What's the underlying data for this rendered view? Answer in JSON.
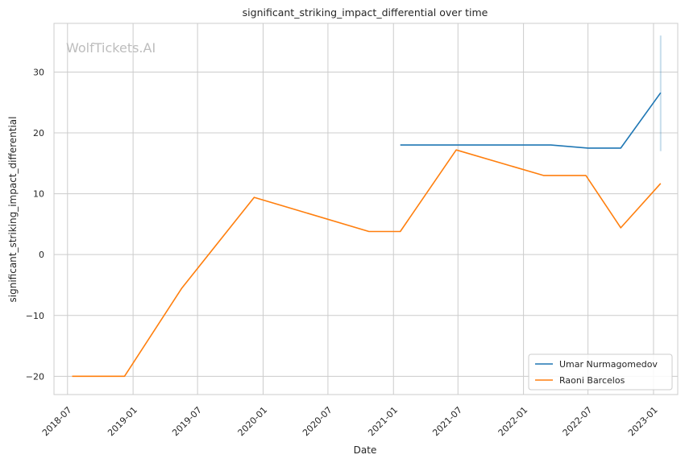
{
  "chart_data": {
    "type": "line",
    "title": "significant_striking_impact_differential over time",
    "xlabel": "Date",
    "ylabel": "significant_striking_impact_differential",
    "watermark": "WolfTickets.AI",
    "xlim": [
      "2018-05-24",
      "2023-03-10"
    ],
    "ylim": [
      -23,
      38
    ],
    "x_ticks": [
      "2018-07",
      "2019-01",
      "2019-07",
      "2020-01",
      "2020-07",
      "2021-01",
      "2021-07",
      "2022-01",
      "2022-07",
      "2023-01"
    ],
    "y_ticks": [
      -20,
      -10,
      0,
      10,
      20,
      30
    ],
    "grid": true,
    "legend_position": "lower-right",
    "series": [
      {
        "name": "Umar Nurmagomedov",
        "color": "#1f77b4",
        "x": [
          "2021-01-20",
          "2021-06-26",
          "2022-03-19",
          "2022-07-01",
          "2022-10-01",
          "2023-01-21"
        ],
        "y": [
          18.0,
          18.0,
          18.0,
          17.5,
          17.5,
          26.6
        ]
      },
      {
        "name": "Raoni Barcelos",
        "color": "#ff7f0e",
        "x": [
          "2018-07-14",
          "2018-12-08",
          "2019-05-18",
          "2019-12-07",
          "2020-10-24",
          "2021-01-20",
          "2021-06-26",
          "2022-02-26",
          "2022-06-25",
          "2022-10-01",
          "2023-01-21"
        ],
        "y": [
          -20.0,
          -20.0,
          -5.5,
          9.4,
          3.8,
          3.8,
          17.2,
          13.0,
          13.0,
          4.4,
          11.7
        ]
      }
    ],
    "error_band": {
      "x": "2023-01-21",
      "y_low": 17.0,
      "y_high": 36.0,
      "color": "#1f77b4"
    }
  }
}
